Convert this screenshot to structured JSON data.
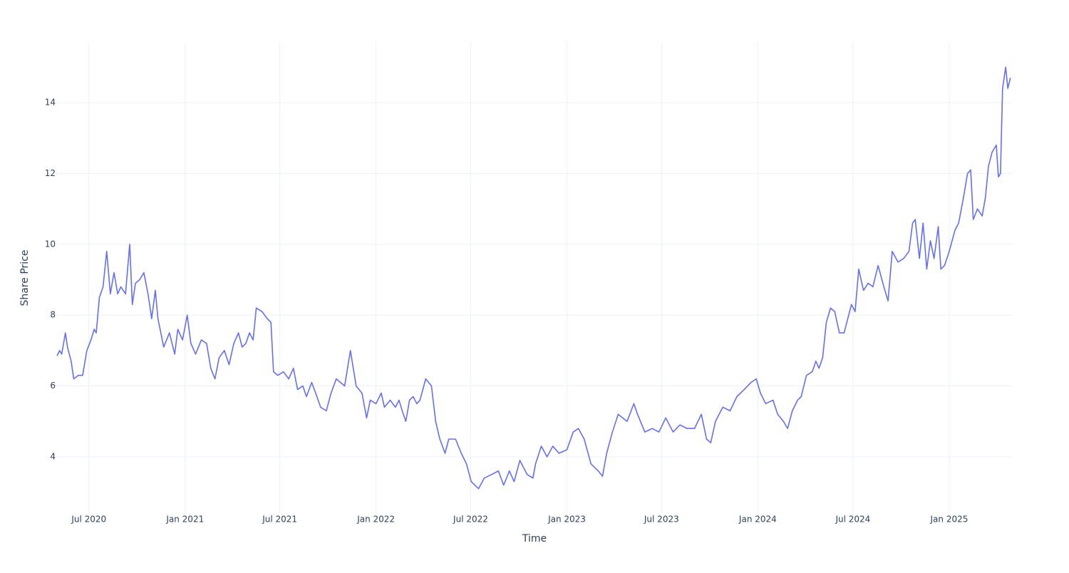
{
  "chart_data": {
    "type": "line",
    "xlabel": "Time",
    "ylabel": "Share Price",
    "color": "#636efa",
    "grid": true,
    "xlim": [
      "2020-05-01",
      "2025-05-01"
    ],
    "xticks": [
      {
        "value": "2020-07-01",
        "label": "Jul 2020"
      },
      {
        "value": "2021-01-01",
        "label": "Jan 2021"
      },
      {
        "value": "2021-07-01",
        "label": "Jul 2021"
      },
      {
        "value": "2022-01-01",
        "label": "Jan 2022"
      },
      {
        "value": "2022-07-01",
        "label": "Jul 2022"
      },
      {
        "value": "2023-01-01",
        "label": "Jan 2023"
      },
      {
        "value": "2023-07-01",
        "label": "Jul 2023"
      },
      {
        "value": "2024-01-01",
        "label": "Jan 2024"
      },
      {
        "value": "2024-07-01",
        "label": "Jul 2024"
      },
      {
        "value": "2025-01-01",
        "label": "Jan 2025"
      }
    ],
    "ylim": [
      2.41,
      15.69
    ],
    "yticks": [
      4,
      6,
      8,
      10,
      12,
      14
    ],
    "x": [
      "2020-05-01",
      "2020-05-06",
      "2020-05-10",
      "2020-05-17",
      "2020-05-21",
      "2020-05-28",
      "2020-06-02",
      "2020-06-11",
      "2020-06-19",
      "2020-06-27",
      "2020-07-05",
      "2020-07-11",
      "2020-07-15",
      "2020-07-21",
      "2020-07-28",
      "2020-08-04",
      "2020-08-11",
      "2020-08-18",
      "2020-08-25",
      "2020-08-31",
      "2020-09-09",
      "2020-09-17",
      "2020-09-22",
      "2020-09-28",
      "2020-10-06",
      "2020-10-14",
      "2020-10-22",
      "2020-10-29",
      "2020-11-05",
      "2020-11-10",
      "2020-11-21",
      "2020-12-02",
      "2020-12-12",
      "2020-12-18",
      "2020-12-27",
      "2021-01-05",
      "2021-01-12",
      "2021-01-21",
      "2021-02-01",
      "2021-02-11",
      "2021-02-19",
      "2021-02-27",
      "2021-03-07",
      "2021-03-17",
      "2021-03-26",
      "2021-04-04",
      "2021-04-13",
      "2021-04-20",
      "2021-04-27",
      "2021-05-04",
      "2021-05-11",
      "2021-05-17",
      "2021-05-28",
      "2021-06-07",
      "2021-06-14",
      "2021-06-19",
      "2021-06-27",
      "2021-07-08",
      "2021-07-18",
      "2021-07-27",
      "2021-08-04",
      "2021-08-14",
      "2021-08-21",
      "2021-08-31",
      "2021-09-10",
      "2021-09-17",
      "2021-09-28",
      "2021-10-07",
      "2021-10-17",
      "2021-10-25",
      "2021-11-02",
      "2021-11-13",
      "2021-11-24",
      "2021-12-05",
      "2021-12-14",
      "2021-12-21",
      "2022-01-01",
      "2022-01-11",
      "2022-01-17",
      "2022-01-28",
      "2022-02-07",
      "2022-02-14",
      "2022-02-20",
      "2022-02-27",
      "2022-03-06",
      "2022-03-13",
      "2022-03-20",
      "2022-03-26",
      "2022-04-06",
      "2022-04-17",
      "2022-04-25",
      "2022-05-03",
      "2022-05-13",
      "2022-05-20",
      "2022-06-02",
      "2022-06-13",
      "2022-06-23",
      "2022-07-02",
      "2022-07-16",
      "2022-07-27",
      "2022-08-10",
      "2022-08-23",
      "2022-09-02",
      "2022-09-13",
      "2022-09-22",
      "2022-10-03",
      "2022-10-17",
      "2022-10-28",
      "2022-11-02",
      "2022-11-13",
      "2022-11-24",
      "2022-12-05",
      "2022-12-17",
      "2023-01-01",
      "2023-01-13",
      "2023-01-23",
      "2023-02-03",
      "2023-02-16",
      "2023-03-02",
      "2023-03-10",
      "2023-03-18",
      "2023-03-29",
      "2023-04-09",
      "2023-04-26",
      "2023-05-09",
      "2023-05-16",
      "2023-05-30",
      "2023-06-13",
      "2023-06-26",
      "2023-07-09",
      "2023-07-23",
      "2023-08-05",
      "2023-08-19",
      "2023-09-02",
      "2023-09-15",
      "2023-09-25",
      "2023-10-03",
      "2023-10-12",
      "2023-10-26",
      "2023-11-09",
      "2023-11-22",
      "2023-12-06",
      "2023-12-19",
      "2023-12-29",
      "2024-01-06",
      "2024-01-16",
      "2024-01-30",
      "2024-02-08",
      "2024-02-19",
      "2024-02-27",
      "2024-03-07",
      "2024-03-17",
      "2024-03-24",
      "2024-04-03",
      "2024-04-14",
      "2024-04-21",
      "2024-04-27",
      "2024-05-04",
      "2024-05-11",
      "2024-05-19",
      "2024-05-27",
      "2024-06-05",
      "2024-06-14",
      "2024-06-28",
      "2024-07-05",
      "2024-07-12",
      "2024-07-21",
      "2024-07-30",
      "2024-08-08",
      "2024-08-18",
      "2024-08-29",
      "2024-09-06",
      "2024-09-14",
      "2024-09-25",
      "2024-10-06",
      "2024-10-16",
      "2024-10-23",
      "2024-10-28",
      "2024-11-05",
      "2024-11-12",
      "2024-11-19",
      "2024-11-26",
      "2024-12-03",
      "2024-12-11",
      "2024-12-16",
      "2024-12-23",
      "2025-01-01",
      "2025-01-12",
      "2025-01-19",
      "2025-01-28",
      "2025-02-05",
      "2025-02-11",
      "2025-02-16",
      "2025-02-24",
      "2025-03-05",
      "2025-03-11",
      "2025-03-17",
      "2025-03-24",
      "2025-04-01",
      "2025-04-05",
      "2025-04-09",
      "2025-04-13",
      "2025-04-19",
      "2025-04-23",
      "2025-04-28"
    ],
    "values": [
      6.85,
      7.0,
      6.9,
      7.5,
      7.1,
      6.7,
      6.2,
      6.3,
      6.3,
      7.0,
      7.3,
      7.6,
      7.5,
      8.5,
      8.8,
      9.8,
      8.6,
      9.2,
      8.6,
      8.8,
      8.6,
      10.0,
      8.3,
      8.9,
      9.0,
      9.2,
      8.6,
      7.9,
      8.7,
      7.9,
      7.1,
      7.5,
      6.9,
      7.6,
      7.3,
      8.0,
      7.2,
      6.9,
      7.3,
      7.2,
      6.5,
      6.2,
      6.8,
      7.0,
      6.6,
      7.2,
      7.5,
      7.1,
      7.2,
      7.5,
      7.3,
      8.2,
      8.1,
      7.9,
      7.8,
      6.4,
      6.3,
      6.4,
      6.2,
      6.5,
      5.9,
      6.0,
      5.7,
      6.1,
      5.7,
      5.4,
      5.3,
      5.8,
      6.2,
      6.1,
      6.0,
      7.0,
      6.0,
      5.8,
      5.1,
      5.6,
      5.5,
      5.8,
      5.4,
      5.6,
      5.4,
      5.6,
      5.3,
      5.0,
      5.6,
      5.7,
      5.5,
      5.6,
      6.2,
      6.0,
      5.0,
      4.5,
      4.1,
      4.5,
      4.5,
      4.1,
      3.8,
      3.3,
      3.1,
      3.4,
      3.5,
      3.6,
      3.2,
      3.6,
      3.3,
      3.9,
      3.5,
      3.4,
      3.8,
      4.3,
      4.0,
      4.3,
      4.1,
      4.2,
      4.7,
      4.8,
      4.5,
      3.8,
      3.6,
      3.45,
      4.1,
      4.7,
      5.2,
      5.0,
      5.5,
      5.2,
      4.7,
      4.8,
      4.7,
      5.1,
      4.7,
      4.9,
      4.8,
      4.8,
      5.2,
      4.5,
      4.4,
      5.0,
      5.4,
      5.3,
      5.7,
      5.9,
      6.1,
      6.2,
      5.8,
      5.5,
      5.6,
      5.2,
      5.0,
      4.8,
      5.3,
      5.6,
      5.7,
      6.3,
      6.4,
      6.7,
      6.5,
      6.8,
      7.8,
      8.2,
      8.1,
      7.5,
      7.5,
      8.3,
      8.1,
      9.3,
      8.7,
      8.9,
      8.8,
      9.4,
      8.8,
      8.4,
      9.8,
      9.5,
      9.6,
      9.8,
      10.6,
      10.7,
      9.6,
      10.6,
      9.3,
      10.1,
      9.6,
      10.5,
      9.3,
      9.4,
      9.8,
      10.4,
      10.6,
      11.3,
      12.0,
      12.1,
      10.7,
      11.0,
      10.8,
      11.3,
      12.2,
      12.6,
      12.8,
      11.9,
      12.0,
      14.4,
      15.0,
      14.4,
      14.7
    ]
  }
}
